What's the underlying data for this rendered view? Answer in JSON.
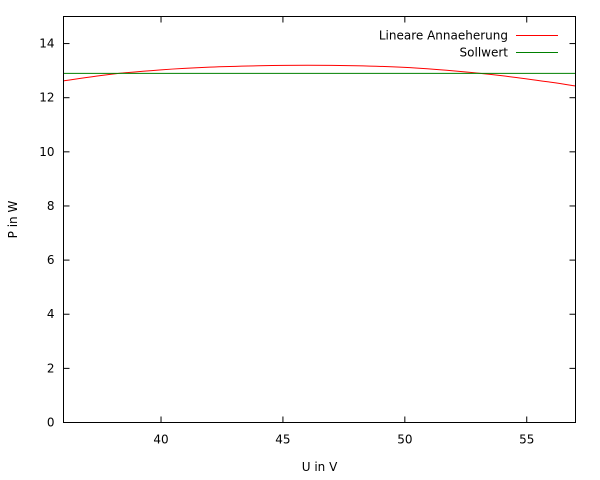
{
  "chart_data": {
    "type": "line",
    "xlabel": "U in V",
    "ylabel": "P in W",
    "xlim": [
      36,
      57
    ],
    "ylim": [
      0,
      15
    ],
    "x_ticks": [
      40,
      45,
      50,
      55
    ],
    "y_ticks": [
      0,
      2,
      4,
      6,
      8,
      10,
      12,
      14
    ],
    "grid": false,
    "legend_position": "top-right",
    "series": [
      {
        "name": "Lineare Annaeherung",
        "color": "#ff0000",
        "x": [
          36,
          38,
          40,
          42,
          44,
          46,
          48,
          50,
          52,
          54,
          56,
          57
        ],
        "y": [
          12.62,
          12.87,
          13.03,
          13.13,
          13.18,
          13.2,
          13.18,
          13.12,
          12.99,
          12.81,
          12.57,
          12.43
        ]
      },
      {
        "name": "Sollwert",
        "color": "#008000",
        "x": [
          36,
          57
        ],
        "y": [
          12.9,
          12.9
        ]
      }
    ]
  }
}
